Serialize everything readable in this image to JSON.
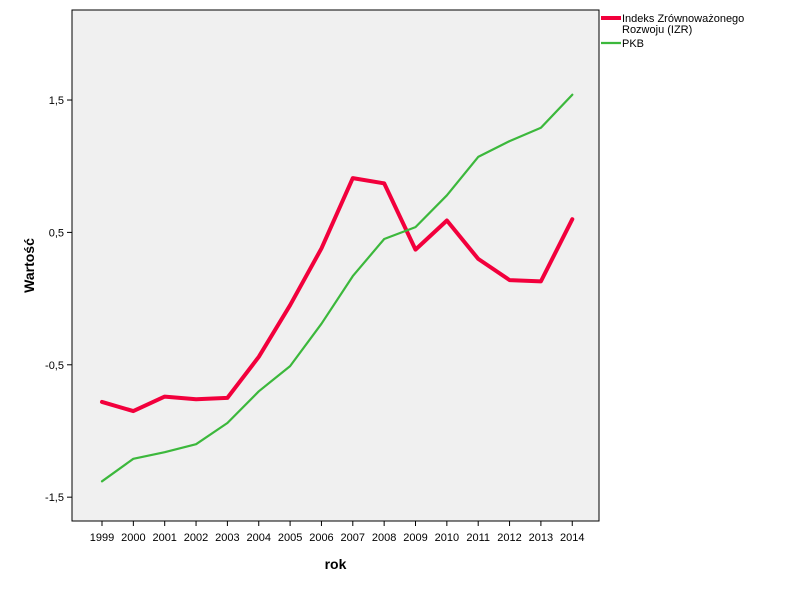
{
  "chart_data": {
    "type": "line",
    "title": "",
    "xlabel": "rok",
    "ylabel": "Wartość",
    "categories": [
      "1999",
      "2000",
      "2001",
      "2002",
      "2003",
      "2004",
      "2005",
      "2006",
      "2007",
      "2008",
      "2009",
      "2010",
      "2011",
      "2012",
      "2013",
      "2014"
    ],
    "ytick_values": [
      1.5,
      0.5,
      -0.5,
      -1.5
    ],
    "ytick_labels": [
      "1,5",
      "0,5",
      "-0,5",
      "-1,5"
    ],
    "ylim": [
      -1.68,
      2.18
    ],
    "grid": false,
    "legend_position": "top-right",
    "background_color": "#f0f0f0",
    "series": [
      {
        "name": "Indeks Zrównoważonego Rozwoju (IZR)",
        "name_lines": [
          "Indeks Zrównoważonego",
          "Rozwoju (IZR)"
        ],
        "color": "#f2003c",
        "values": [
          -0.78,
          -0.85,
          -0.74,
          -0.76,
          -0.75,
          -0.44,
          -0.05,
          0.38,
          0.91,
          0.87,
          0.37,
          0.59,
          0.3,
          0.14,
          0.13,
          0.6
        ]
      },
      {
        "name": "PKB",
        "name_lines": [
          "PKB"
        ],
        "color": "#3cb83c",
        "values": [
          -1.38,
          -1.21,
          -1.16,
          -1.1,
          -0.94,
          -0.7,
          -0.51,
          -0.19,
          0.17,
          0.45,
          0.54,
          0.78,
          1.07,
          1.19,
          1.29,
          1.54
        ]
      }
    ]
  }
}
